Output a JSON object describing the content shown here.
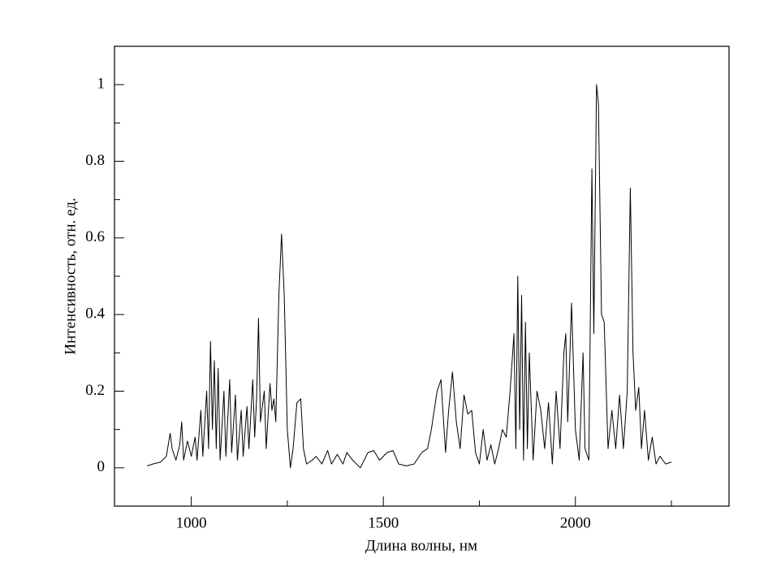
{
  "chart_data": {
    "type": "line",
    "x_label": "Длина волны, нм",
    "y_label": "Интенсивность, отн. ед.",
    "color": "#000000",
    "xlim": [
      800,
      2400
    ],
    "xticks": [
      1000,
      1500,
      2000
    ],
    "xminorticks": [
      1250,
      1750,
      2250
    ],
    "ylim": [
      -0.1,
      1.1
    ],
    "yticks": [
      0,
      0.2,
      0.4,
      0.6,
      0.8,
      1
    ],
    "yminorticks": [
      0.1,
      0.3,
      0.5,
      0.7,
      0.9
    ],
    "x": [
      885,
      900,
      920,
      935,
      945,
      950,
      960,
      970,
      975,
      980,
      990,
      1000,
      1010,
      1015,
      1025,
      1030,
      1040,
      1045,
      1050,
      1055,
      1060,
      1065,
      1070,
      1075,
      1085,
      1090,
      1100,
      1105,
      1115,
      1120,
      1130,
      1135,
      1145,
      1150,
      1160,
      1165,
      1170,
      1175,
      1180,
      1190,
      1195,
      1205,
      1210,
      1215,
      1220,
      1228,
      1235,
      1242,
      1250,
      1258,
      1265,
      1275,
      1285,
      1292,
      1300,
      1315,
      1325,
      1340,
      1355,
      1365,
      1380,
      1395,
      1405,
      1420,
      1440,
      1460,
      1475,
      1490,
      1510,
      1525,
      1540,
      1560,
      1580,
      1600,
      1615,
      1625,
      1640,
      1650,
      1655,
      1662,
      1670,
      1680,
      1690,
      1700,
      1710,
      1720,
      1730,
      1740,
      1750,
      1760,
      1770,
      1780,
      1790,
      1800,
      1810,
      1820,
      1830,
      1840,
      1845,
      1850,
      1855,
      1860,
      1865,
      1870,
      1875,
      1880,
      1890,
      1900,
      1910,
      1920,
      1930,
      1940,
      1950,
      1960,
      1970,
      1975,
      1980,
      1990,
      2000,
      2010,
      2020,
      2025,
      2035,
      2043,
      2048,
      2055,
      2060,
      2068,
      2075,
      2085,
      2095,
      2105,
      2115,
      2125,
      2135,
      2143,
      2150,
      2157,
      2165,
      2172,
      2180,
      2190,
      2200,
      2210,
      2220,
      2235,
      2250
    ],
    "values": [
      0.005,
      0.01,
      0.015,
      0.03,
      0.09,
      0.05,
      0.02,
      0.06,
      0.12,
      0.02,
      0.07,
      0.03,
      0.08,
      0.02,
      0.15,
      0.03,
      0.2,
      0.05,
      0.33,
      0.1,
      0.28,
      0.05,
      0.26,
      0.02,
      0.2,
      0.03,
      0.23,
      0.04,
      0.19,
      0.02,
      0.15,
      0.03,
      0.16,
      0.05,
      0.23,
      0.08,
      0.18,
      0.39,
      0.12,
      0.2,
      0.05,
      0.22,
      0.15,
      0.18,
      0.12,
      0.45,
      0.61,
      0.45,
      0.1,
      0.0,
      0.05,
      0.17,
      0.18,
      0.05,
      0.01,
      0.02,
      0.03,
      0.01,
      0.045,
      0.01,
      0.035,
      0.01,
      0.04,
      0.02,
      0.0,
      0.04,
      0.045,
      0.02,
      0.04,
      0.045,
      0.01,
      0.005,
      0.01,
      0.04,
      0.05,
      0.1,
      0.2,
      0.23,
      0.15,
      0.04,
      0.15,
      0.25,
      0.12,
      0.05,
      0.19,
      0.14,
      0.15,
      0.04,
      0.01,
      0.1,
      0.02,
      0.06,
      0.01,
      0.05,
      0.1,
      0.08,
      0.2,
      0.35,
      0.05,
      0.5,
      0.1,
      0.45,
      0.02,
      0.38,
      0.05,
      0.3,
      0.02,
      0.2,
      0.15,
      0.05,
      0.17,
      0.01,
      0.2,
      0.05,
      0.3,
      0.35,
      0.12,
      0.43,
      0.1,
      0.02,
      0.3,
      0.05,
      0.02,
      0.78,
      0.35,
      1.0,
      0.95,
      0.4,
      0.38,
      0.05,
      0.15,
      0.05,
      0.19,
      0.05,
      0.2,
      0.73,
      0.3,
      0.15,
      0.21,
      0.05,
      0.15,
      0.02,
      0.08,
      0.01,
      0.03,
      0.01,
      0.015
    ]
  }
}
